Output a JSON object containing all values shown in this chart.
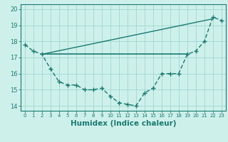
{
  "curve_main_x": [
    0,
    1,
    2,
    3,
    4,
    5,
    6,
    7,
    8,
    9,
    10,
    11,
    12,
    13,
    14,
    15,
    16,
    17,
    18,
    19,
    20,
    21,
    22,
    23
  ],
  "curve_main_y": [
    17.8,
    17.4,
    17.2,
    16.3,
    15.5,
    15.3,
    15.3,
    15.0,
    15.0,
    15.1,
    14.6,
    14.2,
    14.1,
    14.0,
    14.8,
    15.1,
    16.0,
    16.0,
    16.0,
    17.2,
    17.4,
    18.0,
    19.5,
    19.3
  ],
  "flat_line_x": [
    2,
    19
  ],
  "flat_line_y": [
    17.2,
    17.2
  ],
  "diag_line_x": [
    2,
    22
  ],
  "diag_line_y": [
    17.2,
    19.4
  ],
  "color": "#1a7a70",
  "bg_color": "#cef0eb",
  "grid_color": "#9dd8d0",
  "xlabel": "Humidex (Indice chaleur)",
  "xtick_labels": [
    "0",
    "1",
    "2",
    "3",
    "4",
    "5",
    "6",
    "7",
    "8",
    "9",
    "10",
    "11",
    "12",
    "13",
    "14",
    "15",
    "16",
    "17",
    "18",
    "19",
    "20",
    "21",
    "22",
    "23"
  ],
  "ytick_vals": [
    14,
    15,
    16,
    17,
    18,
    19,
    20
  ],
  "xlim": [
    -0.5,
    23.5
  ],
  "ylim": [
    13.7,
    20.3
  ]
}
